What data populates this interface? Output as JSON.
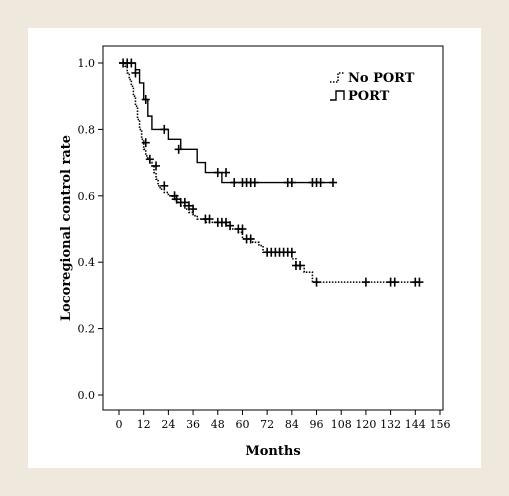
{
  "chart_data": {
    "type": "line",
    "xlabel": "Months",
    "ylabel": "Locoregional control rate",
    "xlim": [
      0,
      156
    ],
    "ylim": [
      0.0,
      1.0
    ],
    "xticks": [
      0,
      12,
      24,
      36,
      48,
      60,
      72,
      84,
      96,
      108,
      120,
      132,
      144,
      156
    ],
    "yticks": [
      "0.0",
      "0.2",
      "0.4",
      "0.6",
      "0.8",
      "1.0"
    ],
    "legend_position": "top-right",
    "series": [
      {
        "name": "No PORT",
        "style": "dotted",
        "color": "#000000",
        "steps": [
          [
            0,
            1.0
          ],
          [
            3,
            0.99
          ],
          [
            4,
            0.97
          ],
          [
            5,
            0.95
          ],
          [
            6,
            0.93
          ],
          [
            7,
            0.9
          ],
          [
            8,
            0.87
          ],
          [
            9,
            0.83
          ],
          [
            10,
            0.8
          ],
          [
            11,
            0.77
          ],
          [
            12,
            0.74
          ],
          [
            13,
            0.72
          ],
          [
            14,
            0.71
          ],
          [
            15,
            0.7
          ],
          [
            16,
            0.69
          ],
          [
            17,
            0.67
          ],
          [
            18,
            0.65
          ],
          [
            19,
            0.63
          ],
          [
            20,
            0.62
          ],
          [
            22,
            0.61
          ],
          [
            24,
            0.6
          ],
          [
            26,
            0.59
          ],
          [
            28,
            0.58
          ],
          [
            30,
            0.57
          ],
          [
            32,
            0.56
          ],
          [
            34,
            0.55
          ],
          [
            36,
            0.54
          ],
          [
            38,
            0.53
          ],
          [
            42,
            0.52
          ],
          [
            52,
            0.51
          ],
          [
            54,
            0.5
          ],
          [
            58,
            0.49
          ],
          [
            60,
            0.47
          ],
          [
            65,
            0.46
          ],
          [
            68,
            0.45
          ],
          [
            70,
            0.43
          ],
          [
            84,
            0.41
          ],
          [
            86,
            0.39
          ],
          [
            90,
            0.37
          ],
          [
            94,
            0.34
          ],
          [
            146,
            0.34
          ]
        ],
        "censored": [
          [
            8,
            0.97
          ],
          [
            13,
            0.76
          ],
          [
            15,
            0.71
          ],
          [
            18,
            0.69
          ],
          [
            22,
            0.63
          ],
          [
            27,
            0.6
          ],
          [
            28,
            0.59
          ],
          [
            30,
            0.58
          ],
          [
            32,
            0.58
          ],
          [
            34,
            0.57
          ],
          [
            36,
            0.56
          ],
          [
            42,
            0.53
          ],
          [
            44,
            0.53
          ],
          [
            48,
            0.52
          ],
          [
            50,
            0.52
          ],
          [
            52,
            0.52
          ],
          [
            54,
            0.51
          ],
          [
            58,
            0.5
          ],
          [
            60,
            0.5
          ],
          [
            62,
            0.47
          ],
          [
            64,
            0.47
          ],
          [
            72,
            0.43
          ],
          [
            74,
            0.43
          ],
          [
            76,
            0.43
          ],
          [
            78,
            0.43
          ],
          [
            80,
            0.43
          ],
          [
            82,
            0.43
          ],
          [
            84,
            0.43
          ],
          [
            86,
            0.39
          ],
          [
            88,
            0.39
          ],
          [
            96,
            0.34
          ],
          [
            120,
            0.34
          ],
          [
            132,
            0.34
          ],
          [
            134,
            0.34
          ],
          [
            144,
            0.34
          ],
          [
            146,
            0.34
          ]
        ]
      },
      {
        "name": "PORT",
        "style": "solid",
        "color": "#000000",
        "steps": [
          [
            0,
            1.0
          ],
          [
            8,
            0.98
          ],
          [
            10,
            0.94
          ],
          [
            12,
            0.89
          ],
          [
            14,
            0.84
          ],
          [
            16,
            0.8
          ],
          [
            24,
            0.77
          ],
          [
            30,
            0.74
          ],
          [
            38,
            0.7
          ],
          [
            42,
            0.67
          ],
          [
            48,
            0.67
          ],
          [
            50,
            0.64
          ],
          [
            104,
            0.64
          ]
        ],
        "censored": [
          [
            2,
            1.0
          ],
          [
            4,
            1.0
          ],
          [
            6,
            1.0
          ],
          [
            13,
            0.89
          ],
          [
            22,
            0.8
          ],
          [
            29,
            0.74
          ],
          [
            48,
            0.67
          ],
          [
            52,
            0.67
          ],
          [
            56,
            0.64
          ],
          [
            60,
            0.64
          ],
          [
            62,
            0.64
          ],
          [
            64,
            0.64
          ],
          [
            66,
            0.64
          ],
          [
            82,
            0.64
          ],
          [
            84,
            0.64
          ],
          [
            94,
            0.64
          ],
          [
            96,
            0.64
          ],
          [
            98,
            0.64
          ],
          [
            104,
            0.64
          ]
        ]
      }
    ]
  }
}
